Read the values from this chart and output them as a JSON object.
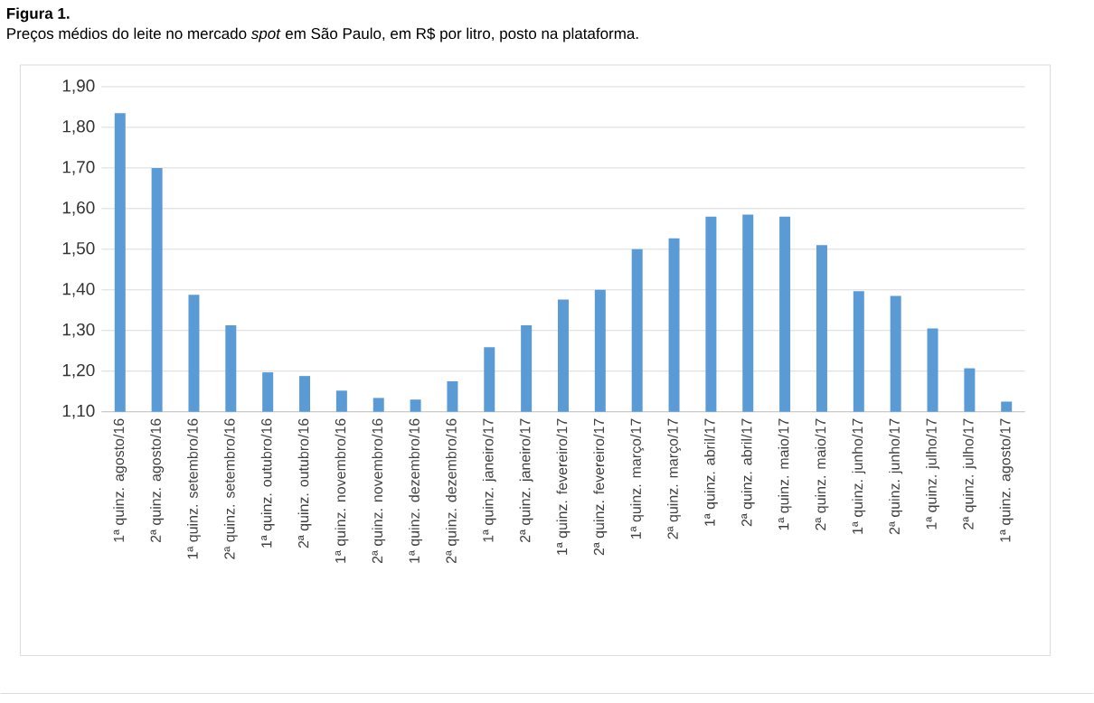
{
  "chart_data": {
    "type": "bar",
    "title": "Figura 1.",
    "subtitle": "Preços médios do leite no mercado *spot* em São Paulo, em R$ por litro, posto na plataforma.",
    "categories": [
      "1ª quinz. agosto/16",
      "2ª quinz. agosto/16",
      "1ª quinz. setembro/16",
      "2ª quinz. setembro/16",
      "1ª quinz. outubro/16",
      "2ª quinz. outubro/16",
      "1ª quinz. novembro/16",
      "2ª quinz. novembro/16",
      "1ª quinz. dezembro/16",
      "2ª quinz. dezembro/16",
      "1ª quinz. janeiro/17",
      "2ª quinz. janeiro/17",
      "1ª quinz. fevereiro/17",
      "2ª quinz. fevereiro/17",
      "1ª quinz. março/17",
      "2ª quinz. março/17",
      "1ª quinz. abril/17",
      "2ª quinz. abril/17",
      "1ª quinz. maio/17",
      "2ª quinz. maio/17",
      "1ª quinz. junho/17",
      "2ª quinz. junho/17",
      "1ª quinz. julho/17",
      "2ª quinz. julho/17",
      "1ª quinz. agosto/17"
    ],
    "values": [
      1.835,
      1.7,
      1.388,
      1.313,
      1.197,
      1.188,
      1.152,
      1.134,
      1.13,
      1.175,
      1.259,
      1.313,
      1.376,
      1.4,
      1.5,
      1.527,
      1.58,
      1.585,
      1.58,
      1.51,
      1.397,
      1.385,
      1.305,
      1.207,
      1.125
    ],
    "color": "#5b9bd5",
    "ylim": [
      1.1,
      1.9
    ],
    "yticks": [
      {
        "value": 1.1,
        "label": "1,10"
      },
      {
        "value": 1.2,
        "label": "1,20"
      },
      {
        "value": 1.3,
        "label": "1,30"
      },
      {
        "value": 1.4,
        "label": "1,40"
      },
      {
        "value": 1.5,
        "label": "1,50"
      },
      {
        "value": 1.6,
        "label": "1,60"
      },
      {
        "value": 1.7,
        "label": "1,70"
      },
      {
        "value": 1.8,
        "label": "1,80"
      },
      {
        "value": 1.9,
        "label": "1,90"
      }
    ],
    "grid": "y"
  }
}
